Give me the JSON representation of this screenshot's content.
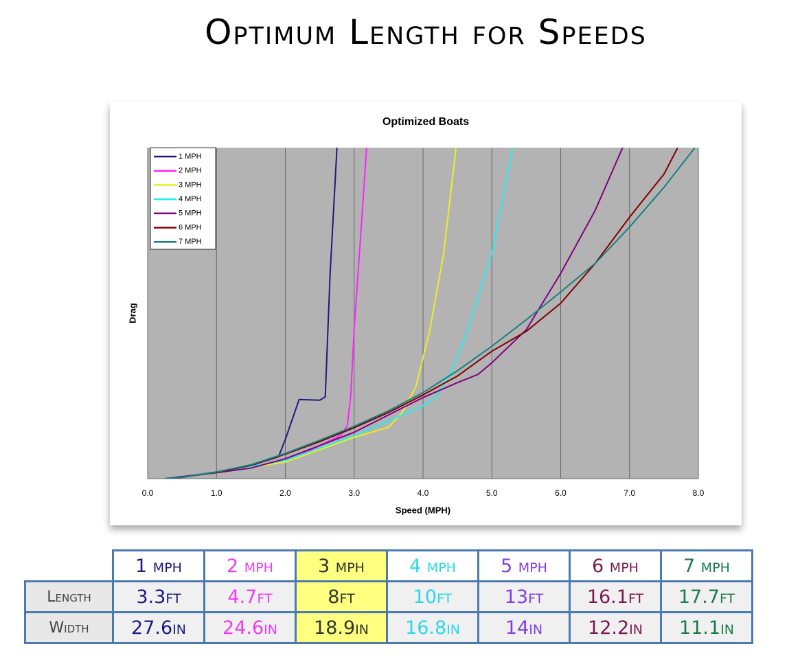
{
  "title": "Optimum Length for Speeds",
  "chart_data": {
    "type": "line",
    "title": "Optimized Boats",
    "x_label": "Speed (MPH)",
    "y_label": "Drag",
    "xlim": [
      0,
      8
    ],
    "ylim": [
      0,
      100
    ],
    "xticks": [
      {
        "value": 0,
        "label": "0.0"
      },
      {
        "value": 1,
        "label": "1.0"
      },
      {
        "value": 2,
        "label": "2.0"
      },
      {
        "value": 3,
        "label": "3.0"
      },
      {
        "value": 4,
        "label": "4.0"
      },
      {
        "value": 5,
        "label": "5.0"
      },
      {
        "value": 6,
        "label": "6.0"
      },
      {
        "value": 7,
        "label": "7.0"
      },
      {
        "value": 8,
        "label": "8.0"
      }
    ],
    "grid": true,
    "legend": "top-left",
    "series": [
      {
        "name": "1 MPH",
        "color": "#1a1a80",
        "x": [
          0.25,
          1,
          1.5,
          1.9,
          2.0,
          2.2,
          2.5,
          2.58,
          2.65,
          2.75
        ],
        "values": [
          0,
          2,
          4,
          6.6,
          11.8,
          23.9,
          23.7,
          24.7,
          61.6,
          100
        ]
      },
      {
        "name": "2 MPH",
        "color": "#ff22ff",
        "x": [
          0.25,
          1,
          1.5,
          1.9,
          2.2,
          2.5,
          2.8,
          2.9,
          2.95,
          3.0,
          3.1,
          3.18
        ],
        "values": [
          0,
          1.9,
          3.8,
          5,
          7,
          10,
          13,
          16,
          25,
          45,
          75,
          100
        ]
      },
      {
        "name": "3 MPH",
        "color": "#eeee22",
        "x": [
          0.25,
          1,
          2,
          3,
          3.5,
          3.7,
          3.9,
          4.1,
          4.3,
          4.48
        ],
        "values": [
          0,
          1.9,
          5,
          12.5,
          15.5,
          20,
          28,
          45,
          68,
          100
        ]
      },
      {
        "name": "4 MPH",
        "color": "#22eeee",
        "x": [
          0.25,
          1,
          2,
          3,
          3.5,
          4,
          4.2,
          4.4,
          4.6,
          5,
          5.3
        ],
        "values": [
          0,
          1.9,
          5.5,
          13,
          17.5,
          22,
          25,
          32,
          42,
          68,
          100
        ]
      },
      {
        "name": "5 MPH",
        "color": "#800080",
        "x": [
          0.25,
          1,
          1.5,
          2,
          3,
          4,
          4.5,
          4.8,
          5,
          5.5,
          6,
          6.5,
          6.9
        ],
        "values": [
          0,
          1.8,
          3.2,
          6,
          14,
          24.5,
          29,
          31.5,
          35,
          45,
          62,
          81,
          100
        ]
      },
      {
        "name": "6 MPH",
        "color": "#800000",
        "x": [
          0.25,
          0.5,
          1,
          1.5,
          2,
          2.5,
          3,
          3.5,
          4,
          4.5,
          5,
          5.5,
          6,
          6.5,
          7,
          7.5,
          7.7
        ],
        "values": [
          0,
          0.4,
          1.9,
          4,
          7.4,
          11.2,
          15.4,
          20,
          25.3,
          31,
          38.5,
          44.5,
          53,
          65,
          79,
          92,
          100
        ]
      },
      {
        "name": "7 MPH",
        "color": "#1a7f7f",
        "x": [
          0.25,
          0.5,
          1,
          1.5,
          2,
          2.5,
          3,
          3.5,
          4,
          4.5,
          5,
          5.5,
          6,
          6.5,
          7,
          7.5,
          7.95
        ],
        "values": [
          0,
          0.4,
          2,
          4.2,
          7.6,
          11.6,
          15.8,
          20.5,
          26,
          32.6,
          40,
          48,
          56.4,
          65,
          76,
          88,
          100
        ]
      }
    ]
  },
  "table": {
    "columns": [
      "1 mph",
      "2 mph",
      "3 mph",
      "4 mph",
      "5 mph",
      "6 mph",
      "7 mph"
    ],
    "column_colors": [
      "#1a1a80",
      "#f03cf0",
      "#333333",
      "#29d8e8",
      "#8040e0",
      "#7a1a4a",
      "#1a7a4a"
    ],
    "rows": [
      {
        "label": "Length",
        "cells": [
          "3.3ft",
          "4.7ft",
          "8ft",
          "10ft",
          "13ft",
          "16.1ft",
          "17.7ft"
        ]
      },
      {
        "label": "Width",
        "cells": [
          "27.6in",
          "24.6in",
          "18.9in",
          "16.8in",
          "14in",
          "12.2in",
          "11.1in"
        ]
      }
    ]
  }
}
